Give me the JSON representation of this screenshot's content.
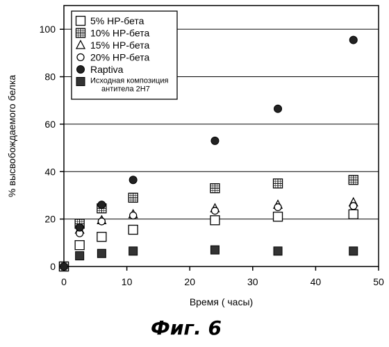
{
  "chart_data": {
    "type": "scatter",
    "caption": "Фиг. 6",
    "xlabel": "Время  ( часы)",
    "ylabel": "% высвобождаемого белка",
    "xlim": [
      0,
      50
    ],
    "ylim": [
      0,
      110
    ],
    "xticks": [
      0,
      10,
      20,
      30,
      40,
      50
    ],
    "yticks": [
      0,
      20,
      40,
      60,
      80,
      100
    ],
    "grid": "horizontal",
    "legend_position": "top-left",
    "series": [
      {
        "name": "5%  НР-бета",
        "marker": "square-open",
        "x": [
          0,
          2.5,
          6,
          11,
          24,
          34,
          46
        ],
        "y": [
          0,
          9,
          12.5,
          15.5,
          19.5,
          21,
          22
        ]
      },
      {
        "name": "10%  НР-бета",
        "marker": "square-cross",
        "x": [
          0,
          2.5,
          6,
          11,
          24,
          34,
          46
        ],
        "y": [
          0,
          18,
          24.5,
          29,
          33,
          35,
          36.5
        ]
      },
      {
        "name": "15%  НР-бета",
        "marker": "triangle-open",
        "x": [
          0,
          2.5,
          6,
          11,
          24,
          34,
          46
        ],
        "y": [
          0,
          15.5,
          19.5,
          22,
          24.5,
          26,
          27
        ]
      },
      {
        "name": "20%  НР-бета",
        "marker": "circle-open",
        "x": [
          0,
          2.5,
          6,
          11,
          24,
          34,
          46
        ],
        "y": [
          0,
          14,
          19,
          21.5,
          23.5,
          25,
          25.5
        ]
      },
      {
        "name": "Raptiva",
        "marker": "circle-filled",
        "x": [
          0,
          2.5,
          6,
          11,
          24,
          34,
          46
        ],
        "y": [
          0,
          16.5,
          26,
          36.5,
          53,
          66.5,
          95.5
        ]
      },
      {
        "name_line1": "Исходная композиция",
        "name_line2": "антитела  2H7",
        "marker": "square-filled",
        "x": [
          0,
          2.5,
          6,
          11,
          24,
          34,
          46
        ],
        "y": [
          0,
          4.5,
          5.5,
          6.5,
          7,
          6.5,
          6.5
        ]
      }
    ]
  }
}
